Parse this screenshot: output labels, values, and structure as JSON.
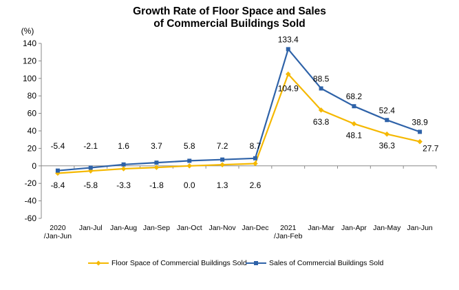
{
  "chart_data": {
    "type": "line",
    "title_line1": "Growth Rate of Floor Space and Sales",
    "title_line2": "of Commercial Buildings Sold",
    "ylabel": "(%)",
    "ylim": [
      -60,
      140
    ],
    "yticks": [
      140,
      120,
      100,
      80,
      60,
      40,
      20,
      0,
      -20,
      -40,
      -60
    ],
    "categories": [
      [
        "2020",
        "/Jan-Jun"
      ],
      [
        "Jan-Jul"
      ],
      [
        "Jan-Aug"
      ],
      [
        "Jan-Sep"
      ],
      [
        "Jan-Oct"
      ],
      [
        "Jan-Nov"
      ],
      [
        "Jan-Dec"
      ],
      [
        "2021",
        "/Jan-Feb"
      ],
      [
        "Jan-Mar"
      ],
      [
        "Jan-Apr"
      ],
      [
        "Jan-May"
      ],
      [
        "Jan-Jun"
      ]
    ],
    "series": [
      {
        "name": "Floor Space of Commercial Buildings Sold",
        "color": "#F5B800",
        "marker": "diamond",
        "values": [
          -8.4,
          -5.8,
          -3.3,
          -1.8,
          0.0,
          1.3,
          2.6,
          104.9,
          63.8,
          48.1,
          36.3,
          27.7
        ],
        "labels": [
          "-8.4",
          "-5.8",
          "-3.3",
          "-1.8",
          "0.0",
          "1.3",
          "2.6",
          "104.9",
          "63.8",
          "48.1",
          "36.3",
          "27.7"
        ]
      },
      {
        "name": "Sales of Commercial Buildings Sold",
        "color": "#2E62A8",
        "marker": "square",
        "values": [
          -5.4,
          -2.1,
          1.6,
          3.7,
          5.8,
          7.2,
          8.7,
          133.4,
          88.5,
          68.2,
          52.4,
          38.9
        ],
        "labels": [
          "-5.4",
          "-2.1",
          "1.6",
          "3.7",
          "5.8",
          "7.2",
          "8.7",
          "133.4",
          "88.5",
          "68.2",
          "52.4",
          "38.9"
        ]
      }
    ],
    "grid": false,
    "legend_position": "bottom"
  }
}
